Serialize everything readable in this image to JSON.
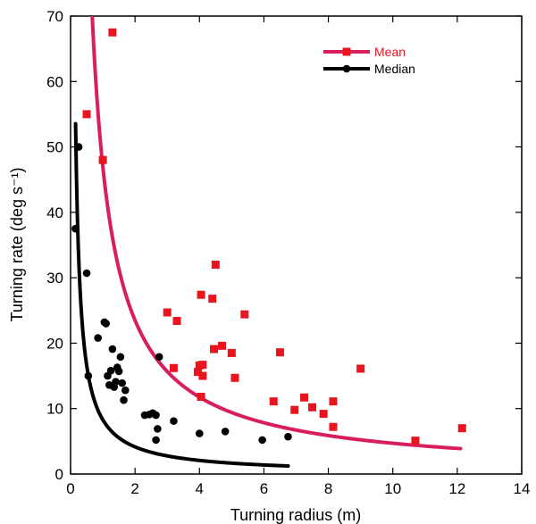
{
  "chart_data": {
    "type": "scatter",
    "xlabel": "Turning radius (m)",
    "ylabel": "Turning rate (deg s⁻¹)",
    "xlim": [
      0,
      14
    ],
    "ylim": [
      0,
      70
    ],
    "xticks": [
      0,
      2,
      4,
      6,
      8,
      10,
      12,
      14
    ],
    "yticks": [
      0,
      10,
      20,
      30,
      40,
      50,
      60,
      70
    ],
    "legend_position": "top-right",
    "grid": false,
    "series": [
      {
        "name": "Mean",
        "color": "#e8141e",
        "fit_color": "#d81e60",
        "marker": "square",
        "points": [
          [
            0.5,
            55
          ],
          [
            1.0,
            48
          ],
          [
            1.3,
            67.5
          ],
          [
            3.0,
            24.7
          ],
          [
            3.2,
            16.2
          ],
          [
            3.3,
            23.4
          ],
          [
            3.95,
            15.6
          ],
          [
            4.0,
            16.6
          ],
          [
            4.05,
            27.4
          ],
          [
            4.05,
            11.8
          ],
          [
            4.1,
            15.0
          ],
          [
            4.1,
            16.7
          ],
          [
            4.4,
            26.8
          ],
          [
            4.45,
            19.1
          ],
          [
            4.5,
            32.0
          ],
          [
            4.7,
            19.6
          ],
          [
            5.0,
            18.5
          ],
          [
            5.1,
            14.7
          ],
          [
            5.4,
            24.4
          ],
          [
            6.3,
            11.1
          ],
          [
            6.5,
            18.6
          ],
          [
            6.95,
            9.8
          ],
          [
            7.25,
            11.7
          ],
          [
            7.5,
            10.2
          ],
          [
            7.85,
            9.2
          ],
          [
            8.15,
            11.1
          ],
          [
            8.15,
            7.2
          ],
          [
            9.0,
            16.1
          ],
          [
            10.7,
            5.1
          ],
          [
            12.15,
            7.0
          ]
        ],
        "fit": {
          "model": "y = a / x",
          "a": 47,
          "x_range": [
            0.67,
            12.1
          ]
        }
      },
      {
        "name": "Median",
        "color": "#000000",
        "fit_color": "#000000",
        "marker": "circle",
        "points": [
          [
            0.15,
            37.5
          ],
          [
            0.25,
            50
          ],
          [
            0.5,
            30.7
          ],
          [
            0.55,
            15
          ],
          [
            0.85,
            20.8
          ],
          [
            1.05,
            23.2
          ],
          [
            1.1,
            23.0
          ],
          [
            1.15,
            15.0
          ],
          [
            1.2,
            13.6
          ],
          [
            1.25,
            15.8
          ],
          [
            1.3,
            19.1
          ],
          [
            1.35,
            13.3
          ],
          [
            1.4,
            14.1
          ],
          [
            1.45,
            16.3
          ],
          [
            1.5,
            15.7
          ],
          [
            1.55,
            17.9
          ],
          [
            1.6,
            13.9
          ],
          [
            1.65,
            11.3
          ],
          [
            1.7,
            12.8
          ],
          [
            2.3,
            9.0
          ],
          [
            2.45,
            9.1
          ],
          [
            2.55,
            9.3
          ],
          [
            2.65,
            9.0
          ],
          [
            2.65,
            5.2
          ],
          [
            2.7,
            6.9
          ],
          [
            2.75,
            17.9
          ],
          [
            3.2,
            8.1
          ],
          [
            4.0,
            6.2
          ],
          [
            4.8,
            6.5
          ],
          [
            5.95,
            5.2
          ],
          [
            6.75,
            5.7
          ]
        ],
        "fit": {
          "model": "y = a / x",
          "a": 8.3,
          "x_range": [
            0.155,
            6.75
          ]
        }
      }
    ]
  }
}
